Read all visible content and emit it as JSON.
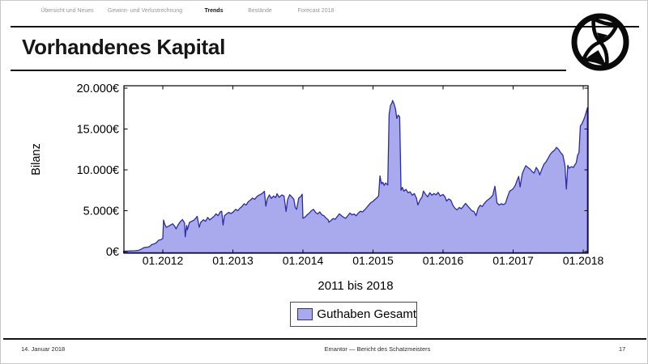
{
  "nav": {
    "items": [
      {
        "label": "Übersicht und Neues",
        "active": false
      },
      {
        "label": "Gewinn- und Verlustrechnung",
        "active": false
      },
      {
        "label": "Trends",
        "active": true
      },
      {
        "label": "Bestände",
        "active": false
      },
      {
        "label": "Forecast 2018",
        "active": false
      }
    ]
  },
  "header": {
    "title": "Vorhandenes Kapital"
  },
  "icons": {
    "logo": "hourglass-in-circle"
  },
  "chart_data": {
    "type": "area",
    "title": "Vorhandenes Kapital",
    "xlabel": "2011 bis 2018",
    "ylabel": "Bilanz",
    "x_tick_values": [
      2012,
      2013,
      2014,
      2015,
      2016,
      2017,
      2018
    ],
    "x_tick_labels": [
      "01.2012",
      "01.2013",
      "01.2014",
      "01.2015",
      "01.2016",
      "01.2017",
      "01.2018"
    ],
    "y_tick_values": [
      0,
      5000,
      10000,
      15000,
      20000
    ],
    "y_tick_labels": [
      "0€",
      "5.000€",
      "10.000€",
      "15.000€",
      "20.000€"
    ],
    "xlim": [
      2011.44,
      2018.07
    ],
    "ylim": [
      0,
      20000
    ],
    "grid": false,
    "legend_position": "below-center",
    "legend": [
      {
        "label": "Guthaben Gesamt",
        "fill": "#a9a9ee",
        "stroke": "#2d2da0"
      }
    ],
    "series": [
      {
        "name": "Guthaben Gesamt",
        "fill": "#a9a9ee",
        "stroke": "#2d2da0",
        "points": [
          [
            2011.44,
            30
          ],
          [
            2011.5,
            60
          ],
          [
            2011.55,
            80
          ],
          [
            2011.6,
            100
          ],
          [
            2011.65,
            130
          ],
          [
            2011.7,
            330
          ],
          [
            2011.73,
            490
          ],
          [
            2011.77,
            520
          ],
          [
            2011.81,
            600
          ],
          [
            2011.84,
            850
          ],
          [
            2011.88,
            950
          ],
          [
            2011.91,
            1100
          ],
          [
            2011.94,
            1400
          ],
          [
            2011.97,
            1450
          ],
          [
            2012.0,
            1600
          ],
          [
            2012.01,
            3860
          ],
          [
            2012.03,
            3300
          ],
          [
            2012.05,
            2970
          ],
          [
            2012.08,
            3100
          ],
          [
            2012.11,
            3250
          ],
          [
            2012.14,
            3400
          ],
          [
            2012.17,
            3100
          ],
          [
            2012.19,
            2770
          ],
          [
            2012.22,
            3300
          ],
          [
            2012.25,
            3660
          ],
          [
            2012.28,
            3920
          ],
          [
            2012.31,
            3500
          ],
          [
            2012.32,
            1810
          ],
          [
            2012.34,
            3200
          ],
          [
            2012.35,
            2660
          ],
          [
            2012.38,
            3560
          ],
          [
            2012.41,
            3700
          ],
          [
            2012.44,
            3820
          ],
          [
            2012.47,
            4080
          ],
          [
            2012.49,
            4320
          ],
          [
            2012.52,
            2970
          ],
          [
            2012.54,
            3560
          ],
          [
            2012.58,
            3900
          ],
          [
            2012.61,
            3700
          ],
          [
            2012.64,
            4180
          ],
          [
            2012.67,
            3870
          ],
          [
            2012.7,
            4100
          ],
          [
            2012.73,
            4300
          ],
          [
            2012.76,
            4620
          ],
          [
            2012.79,
            4400
          ],
          [
            2012.82,
            4850
          ],
          [
            2012.84,
            4940
          ],
          [
            2012.86,
            3250
          ],
          [
            2012.88,
            4400
          ],
          [
            2012.91,
            4600
          ],
          [
            2012.94,
            4800
          ],
          [
            2012.97,
            4650
          ],
          [
            2013.0,
            4800
          ],
          [
            2013.04,
            5170
          ],
          [
            2013.07,
            5000
          ],
          [
            2013.1,
            5300
          ],
          [
            2013.13,
            5500
          ],
          [
            2013.16,
            5850
          ],
          [
            2013.19,
            5700
          ],
          [
            2013.22,
            6100
          ],
          [
            2013.25,
            6300
          ],
          [
            2013.28,
            6540
          ],
          [
            2013.31,
            6400
          ],
          [
            2013.34,
            6700
          ],
          [
            2013.37,
            6900
          ],
          [
            2013.4,
            7020
          ],
          [
            2013.43,
            7200
          ],
          [
            2013.45,
            7380
          ],
          [
            2013.47,
            5560
          ],
          [
            2013.49,
            6440
          ],
          [
            2013.52,
            6930
          ],
          [
            2013.55,
            6500
          ],
          [
            2013.58,
            6800
          ],
          [
            2013.61,
            6600
          ],
          [
            2013.63,
            7080
          ],
          [
            2013.66,
            6640
          ],
          [
            2013.7,
            6930
          ],
          [
            2013.73,
            6800
          ],
          [
            2013.76,
            4900
          ],
          [
            2013.78,
            6340
          ],
          [
            2013.81,
            6960
          ],
          [
            2013.84,
            6700
          ],
          [
            2013.87,
            6400
          ],
          [
            2013.89,
            5400
          ],
          [
            2013.91,
            5170
          ],
          [
            2013.94,
            6540
          ],
          [
            2013.97,
            6740
          ],
          [
            2013.99,
            7030
          ],
          [
            2014.0,
            4080
          ],
          [
            2014.03,
            4230
          ],
          [
            2014.06,
            4500
          ],
          [
            2014.09,
            4710
          ],
          [
            2014.12,
            5000
          ],
          [
            2014.15,
            5170
          ],
          [
            2014.18,
            4800
          ],
          [
            2014.21,
            4600
          ],
          [
            2014.24,
            4850
          ],
          [
            2014.27,
            4500
          ],
          [
            2014.3,
            4390
          ],
          [
            2014.33,
            4100
          ],
          [
            2014.36,
            3900
          ],
          [
            2014.37,
            3590
          ],
          [
            2014.4,
            3800
          ],
          [
            2014.43,
            4050
          ],
          [
            2014.46,
            3950
          ],
          [
            2014.49,
            4300
          ],
          [
            2014.52,
            4620
          ],
          [
            2014.55,
            4400
          ],
          [
            2014.58,
            4200
          ],
          [
            2014.61,
            4080
          ],
          [
            2014.64,
            4400
          ],
          [
            2014.67,
            4710
          ],
          [
            2014.7,
            4500
          ],
          [
            2014.73,
            4600
          ],
          [
            2014.76,
            4390
          ],
          [
            2014.79,
            4700
          ],
          [
            2014.82,
            4940
          ],
          [
            2014.85,
            4850
          ],
          [
            2014.88,
            5100
          ],
          [
            2014.91,
            5400
          ],
          [
            2014.94,
            5700
          ],
          [
            2014.97,
            6000
          ],
          [
            2015.0,
            6150
          ],
          [
            2015.03,
            6400
          ],
          [
            2015.06,
            6600
          ],
          [
            2015.08,
            6830
          ],
          [
            2015.1,
            9270
          ],
          [
            2015.12,
            8300
          ],
          [
            2015.14,
            8490
          ],
          [
            2015.16,
            8100
          ],
          [
            2015.18,
            8400
          ],
          [
            2015.21,
            8150
          ],
          [
            2015.23,
            16800
          ],
          [
            2015.25,
            17900
          ],
          [
            2015.27,
            18200
          ],
          [
            2015.28,
            18500
          ],
          [
            2015.3,
            18100
          ],
          [
            2015.32,
            17500
          ],
          [
            2015.34,
            16300
          ],
          [
            2015.36,
            16700
          ],
          [
            2015.38,
            16500
          ],
          [
            2015.4,
            7500
          ],
          [
            2015.42,
            7850
          ],
          [
            2015.44,
            7400
          ],
          [
            2015.47,
            7610
          ],
          [
            2015.5,
            7200
          ],
          [
            2015.53,
            7320
          ],
          [
            2015.56,
            6900
          ],
          [
            2015.59,
            7100
          ],
          [
            2015.62,
            6540
          ],
          [
            2015.64,
            5700
          ],
          [
            2015.67,
            6300
          ],
          [
            2015.7,
            6700
          ],
          [
            2015.72,
            7410
          ],
          [
            2015.75,
            7000
          ],
          [
            2015.78,
            6700
          ],
          [
            2015.81,
            7200
          ],
          [
            2015.84,
            6900
          ],
          [
            2015.87,
            7100
          ],
          [
            2015.9,
            6950
          ],
          [
            2015.93,
            7250
          ],
          [
            2015.96,
            6800
          ],
          [
            2016.0,
            7000
          ],
          [
            2016.03,
            6640
          ],
          [
            2016.05,
            6180
          ],
          [
            2016.08,
            6450
          ],
          [
            2016.11,
            6300
          ],
          [
            2016.14,
            5660
          ],
          [
            2016.17,
            5300
          ],
          [
            2016.2,
            5100
          ],
          [
            2016.23,
            5400
          ],
          [
            2016.26,
            5250
          ],
          [
            2016.29,
            5550
          ],
          [
            2016.32,
            5900
          ],
          [
            2016.35,
            5600
          ],
          [
            2016.38,
            5300
          ],
          [
            2016.41,
            5000
          ],
          [
            2016.44,
            4900
          ],
          [
            2016.47,
            4400
          ],
          [
            2016.5,
            5300
          ],
          [
            2016.53,
            5660
          ],
          [
            2016.56,
            5500
          ],
          [
            2016.59,
            5900
          ],
          [
            2016.62,
            6200
          ],
          [
            2016.65,
            6400
          ],
          [
            2016.68,
            6600
          ],
          [
            2016.71,
            6900
          ],
          [
            2016.74,
            8000
          ],
          [
            2016.77,
            5950
          ],
          [
            2016.8,
            5700
          ],
          [
            2016.83,
            5850
          ],
          [
            2016.86,
            5750
          ],
          [
            2016.89,
            5900
          ],
          [
            2016.92,
            6700
          ],
          [
            2016.95,
            7400
          ],
          [
            2016.98,
            7550
          ],
          [
            2017.0,
            7700
          ],
          [
            2017.03,
            8100
          ],
          [
            2017.06,
            8800
          ],
          [
            2017.08,
            9200
          ],
          [
            2017.1,
            7900
          ],
          [
            2017.13,
            9500
          ],
          [
            2017.15,
            9950
          ],
          [
            2017.18,
            10500
          ],
          [
            2017.21,
            10300
          ],
          [
            2017.24,
            10100
          ],
          [
            2017.27,
            9800
          ],
          [
            2017.3,
            9600
          ],
          [
            2017.33,
            10300
          ],
          [
            2017.36,
            9900
          ],
          [
            2017.38,
            9400
          ],
          [
            2017.41,
            10100
          ],
          [
            2017.44,
            10700
          ],
          [
            2017.47,
            11000
          ],
          [
            2017.5,
            11450
          ],
          [
            2017.53,
            11900
          ],
          [
            2017.56,
            12200
          ],
          [
            2017.59,
            12400
          ],
          [
            2017.62,
            12750
          ],
          [
            2017.65,
            12500
          ],
          [
            2017.68,
            12100
          ],
          [
            2017.71,
            11800
          ],
          [
            2017.74,
            10500
          ],
          [
            2017.76,
            7650
          ],
          [
            2017.78,
            10550
          ],
          [
            2017.8,
            10200
          ],
          [
            2017.83,
            10400
          ],
          [
            2017.86,
            10300
          ],
          [
            2017.88,
            10600
          ],
          [
            2017.9,
            10850
          ],
          [
            2017.92,
            11800
          ],
          [
            2017.94,
            12100
          ],
          [
            2017.96,
            15400
          ],
          [
            2017.98,
            15600
          ],
          [
            2018.0,
            16000
          ],
          [
            2018.02,
            16400
          ],
          [
            2018.04,
            17000
          ],
          [
            2018.06,
            17600
          ]
        ]
      }
    ]
  },
  "footer": {
    "date": "14. Januar 2018",
    "center": "Emantor — Bericht des Schatzmeisters",
    "page": "17"
  }
}
